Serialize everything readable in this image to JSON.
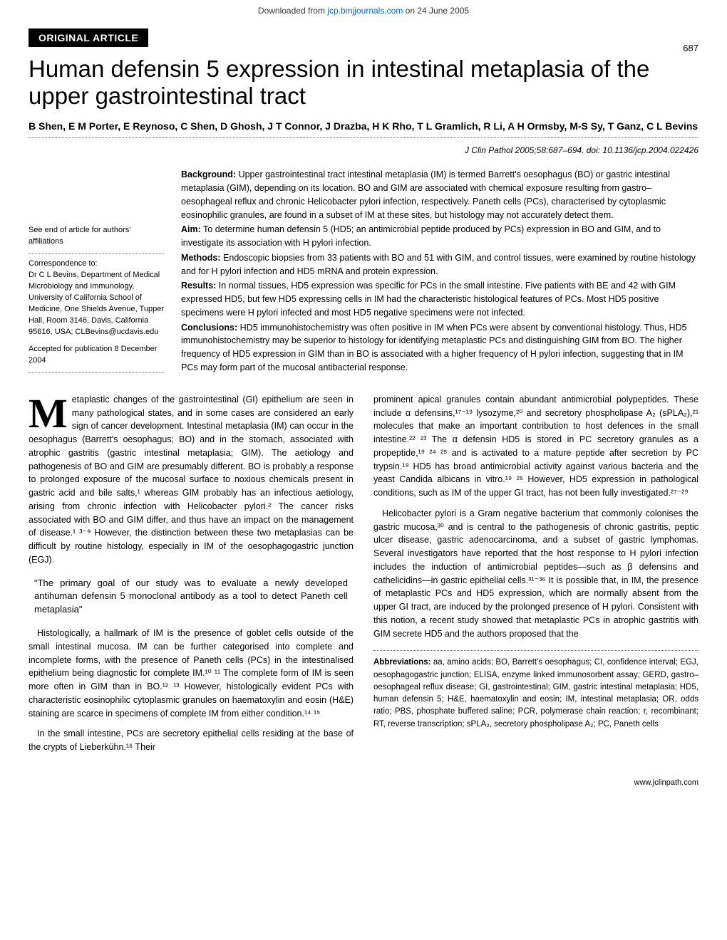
{
  "download_bar": {
    "prefix": "Downloaded from ",
    "link_text": "jcp.bmjjournals.com",
    "suffix": " on 24 June 2005"
  },
  "page_number": "687",
  "badge": "ORIGINAL ARTICLE",
  "title": "Human defensin 5 expression in intestinal metaplasia of the upper gastrointestinal tract",
  "authors": "B Shen, E M Porter, E Reynoso, C Shen, D Ghosh, J T Connor, J Drazba, H K Rho, T L Gramlich, R Li, A H Ormsby, M-S Sy, T Ganz, C L Bevins",
  "citation": "J Clin Pathol 2005;58:687–694. doi: 10.1136/jcp.2004.022426",
  "sidebar": {
    "affiliations": "See end of article for authors' affiliations",
    "correspondence_label": "Correspondence to:",
    "correspondence": "Dr C L Bevins, Department of Medical Microbiology and Immunology, University of California School of Medicine, One Shields Avenue, Tupper Hall, Room 3146, Davis, California 95616, USA; CLBevins@ucdavis.edu",
    "accepted": "Accepted for publication 8 December 2004"
  },
  "abstract": {
    "background_label": "Background:",
    "background": " Upper gastrointestinal tract intestinal metaplasia (IM) is termed Barrett's oesophagus (BO) or gastric intestinal metaplasia (GIM), depending on its location. BO and GIM are associated with chemical exposure resulting from gastro–oesophageal reflux and chronic Helicobacter pylori infection, respectively. Paneth cells (PCs), characterised by cytoplasmic eosinophilic granules, are found in a subset of IM at these sites, but histology may not accurately detect them.",
    "aim_label": "Aim:",
    "aim": " To determine human defensin 5 (HD5; an antimicrobial peptide produced by PCs) expression in BO and GIM, and to investigate its association with H pylori infection.",
    "methods_label": "Methods:",
    "methods": " Endoscopic biopsies from 33 patients with BO and 51 with GIM, and control tissues, were examined by routine histology and for H pylori infection and HD5 mRNA and protein expression.",
    "results_label": "Results:",
    "results": " In normal tissues, HD5 expression was specific for PCs in the small intestine. Five patients with BE and 42 with GIM expressed HD5, but few HD5 expressing cells in IM had the characteristic histological features of PCs. Most HD5 positive specimens were H pylori infected and most HD5 negative specimens were not infected.",
    "conclusions_label": "Conclusions:",
    "conclusions": " HD5 immunohistochemistry was often positive in IM when PCs were absent by conventional histology. Thus, HD5 immunohistochemistry may be superior to histology for identifying metaplastic PCs and distinguishing GIM from BO. The higher frequency of HD5 expression in GIM than in BO is associated with a higher frequency of H pylori infection, suggesting that in IM PCs may form part of the mucosal antibacterial response."
  },
  "body": {
    "col1_p1": "etaplastic changes of the gastrointestinal (GI) epithelium are seen in many pathological states, and in some cases are considered an early sign of cancer development. Intestinal metaplasia (IM) can occur in the oesophagus (Barrett's oesophagus; BO) and in the stomach, associated with atrophic gastritis (gastric intestinal metaplasia; GIM). The aetiology and pathogenesis of BO and GIM are presumably different. BO is probably a response to prolonged exposure of the mucosal surface to noxious chemicals present in gastric acid and bile salts,¹ whereas GIM probably has an infectious aetiology, arising from chronic infection with Helicobacter pylori.² The cancer risks associated with BO and GIM differ, and thus have an impact on the management of disease.¹ ³⁻⁹ However, the distinction between these two metaplasias can be difficult by routine histology, especially in IM of the oesophagogastric junction (EGJ).",
    "pullquote": "\"The primary goal of our study was to evaluate a newly developed antihuman defensin 5 monoclonal antibody as a tool to detect Paneth cell metaplasia\"",
    "col1_p2": "Histologically, a hallmark of IM is the presence of goblet cells outside of the small intestinal mucosa. IM can be further categorised into complete and incomplete forms, with the presence of Paneth cells (PCs) in the intestinalised epithelium being diagnostic for complete IM.¹⁰ ¹¹ The complete form of IM is seen more often in GIM than in BO.¹² ¹³ However, histologically evident PCs with characteristic eosinophilic cytoplasmic granules on haematoxylin and eosin (H&E) staining are scarce in specimens of complete IM from either condition.¹⁴ ¹⁵",
    "col1_p3": "In the small intestine, PCs are secretory epithelial cells residing at the base of the crypts of Lieberkühn.¹⁶ Their",
    "col2_p1": "prominent apical granules contain abundant antimicrobial polypeptides. These include α defensins,¹⁷⁻¹⁹ lysozyme,²⁰ and secretory phospholipase A₂ (sPLA₂),²¹ molecules that make an important contribution to host defences in the small intestine.²² ²³ The α defensin HD5 is stored in PC secretory granules as a propeptide,¹⁹ ²⁴ ²⁵ and is activated to a mature peptide after secretion by PC trypsin.¹⁹ HD5 has broad antimicrobial activity against various bacteria and the yeast Candida albicans in vitro.¹⁹ ²⁶ However, HD5 expression in pathological conditions, such as IM of the upper GI tract, has not been fully investigated.²⁷⁻²⁹",
    "col2_p2": "Helicobacter pylori is a Gram negative bacterium that commonly colonises the gastric mucosa,³⁰ and is central to the pathogenesis of chronic gastritis, peptic ulcer disease, gastric adenocarcinoma, and a subset of gastric lymphomas. Several investigators have reported that the host response to H pylori infection includes the induction of antimicrobial peptides—such as β defensins and cathelicidins—in gastric epithelial cells.³¹⁻³⁶ It is possible that, in IM, the presence of metaplastic PCs and HD5 expression, which are normally absent from the upper GI tract, are induced by the prolonged presence of H pylori. Consistent with this notion, a recent study showed that metaplastic PCs in atrophic gastritis with GIM secrete HD5 and the authors proposed that the",
    "abbrev_label": "Abbreviations:",
    "abbrev": " aa, amino acids; BO, Barrett's oesophagus; CI, confidence interval; EGJ, oesophagogastric junction; ELISA, enzyme linked immunosorbent assay; GERD, gastro–oesophageal reflux disease; GI, gastrointestinal; GIM, gastric intestinal metaplasia; HD5, human defensin 5; H&E, haematoxylin and eosin; IM, intestinal metaplasia; OR, odds ratio; PBS, phosphate buffered saline; PCR, polymerase chain reaction; r, recombinant; RT, reverse transcription; sPLA₂, secretory phospholipase A₂; PC, Paneth cells"
  },
  "footer_url": "www.jclinpath.com"
}
